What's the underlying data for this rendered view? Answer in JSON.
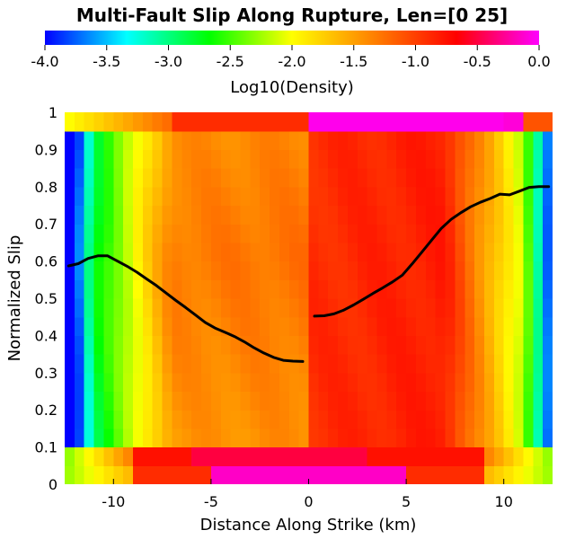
{
  "chart_data": {
    "type": "heatmap",
    "title": "Multi-Fault Slip Along Rupture, Len=[0 25]",
    "xlabel": "Distance Along Strike (km)",
    "ylabel": "Normalized Slip",
    "xlim": [
      -12.5,
      12.5
    ],
    "ylim": [
      0,
      1
    ],
    "x_ticks": [
      -10,
      -5,
      0,
      5,
      10
    ],
    "y_ticks": [
      0,
      0.1,
      0.2,
      0.3,
      0.4,
      0.5,
      0.6,
      0.7,
      0.8,
      0.9,
      1
    ],
    "colorbar": {
      "label": "Log10(Density)",
      "range": [
        -4.0,
        0.0
      ],
      "ticks": [
        "-4.0",
        "-3.5",
        "-3.0",
        "-2.5",
        "-2.0",
        "-1.5",
        "-1.0",
        "-0.5",
        "0.0"
      ],
      "colors": [
        "#0000ff",
        "#00ffff",
        "#00ff00",
        "#ffff00",
        "#ff8000",
        "#ff0000",
        "#ff00ff"
      ]
    },
    "heatmap": {
      "x_bins": 50,
      "y_bins": 20,
      "bin_width_km": 0.5,
      "bin_height": 0.05,
      "description_of_values": "log10 density per cell"
    },
    "series": [
      {
        "x": [
          -12.3,
          -11.8,
          -11.3,
          -10.8,
          -10.3,
          -9.8,
          -9.3,
          -8.8,
          -8.3,
          -7.8,
          -7.3,
          -6.8,
          -6.3,
          -5.8,
          -5.3,
          -4.8,
          -4.3,
          -3.8,
          -3.3,
          -2.8,
          -2.3,
          -1.8,
          -1.3,
          -0.8,
          -0.3
        ],
        "y": [
          0.587,
          0.593,
          0.607,
          0.614,
          0.614,
          0.6,
          0.586,
          0.57,
          0.552,
          0.534,
          0.514,
          0.494,
          0.475,
          0.455,
          0.435,
          0.42,
          0.409,
          0.397,
          0.383,
          0.367,
          0.353,
          0.341,
          0.333,
          0.331,
          0.33
        ]
      },
      {
        "x": [
          0.3,
          0.8,
          1.3,
          1.8,
          2.3,
          2.8,
          3.3,
          3.8,
          4.3,
          4.8,
          5.3,
          5.8,
          6.3,
          6.8,
          7.3,
          7.8,
          8.3,
          8.8,
          9.3,
          9.8,
          10.3,
          10.8,
          11.3,
          11.8,
          12.3
        ],
        "y": [
          0.452,
          0.453,
          0.458,
          0.468,
          0.482,
          0.497,
          0.513,
          0.528,
          0.544,
          0.562,
          0.592,
          0.624,
          0.656,
          0.688,
          0.712,
          0.73,
          0.746,
          0.758,
          0.768,
          0.78,
          0.778,
          0.788,
          0.798,
          0.8,
          0.8
        ]
      }
    ]
  }
}
